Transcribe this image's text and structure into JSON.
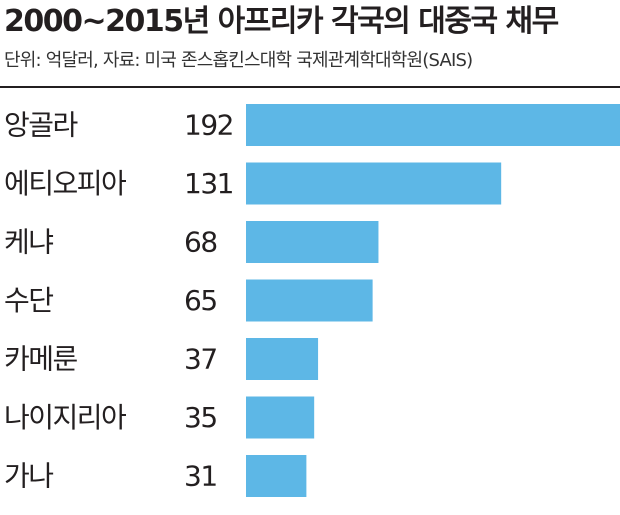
{
  "header": {
    "title": "2000~2015년 아프리카 각국의 대중국 채무",
    "source": "단위: 억달러, 자료: 미국 존스홉킨스대학 국제관계학대학원(SAIS)"
  },
  "colors": {
    "bar": "#5db7e6",
    "text": "#231f20"
  },
  "chart_data": {
    "type": "bar",
    "orientation": "horizontal",
    "title": "2000~2015년 아프리카 각국의 대중국 채무",
    "subtitle": "단위: 억달러, 자료: 미국 존스홉킨스대학 국제관계학대학원(SAIS)",
    "categories": [
      "앙골라",
      "에티오피아",
      "케냐",
      "수단",
      "카메룬",
      "나이지리아",
      "가나"
    ],
    "values": [
      192,
      131,
      68,
      65,
      37,
      35,
      31
    ],
    "xlim": [
      0,
      192
    ],
    "grid": false,
    "legend": "none"
  }
}
